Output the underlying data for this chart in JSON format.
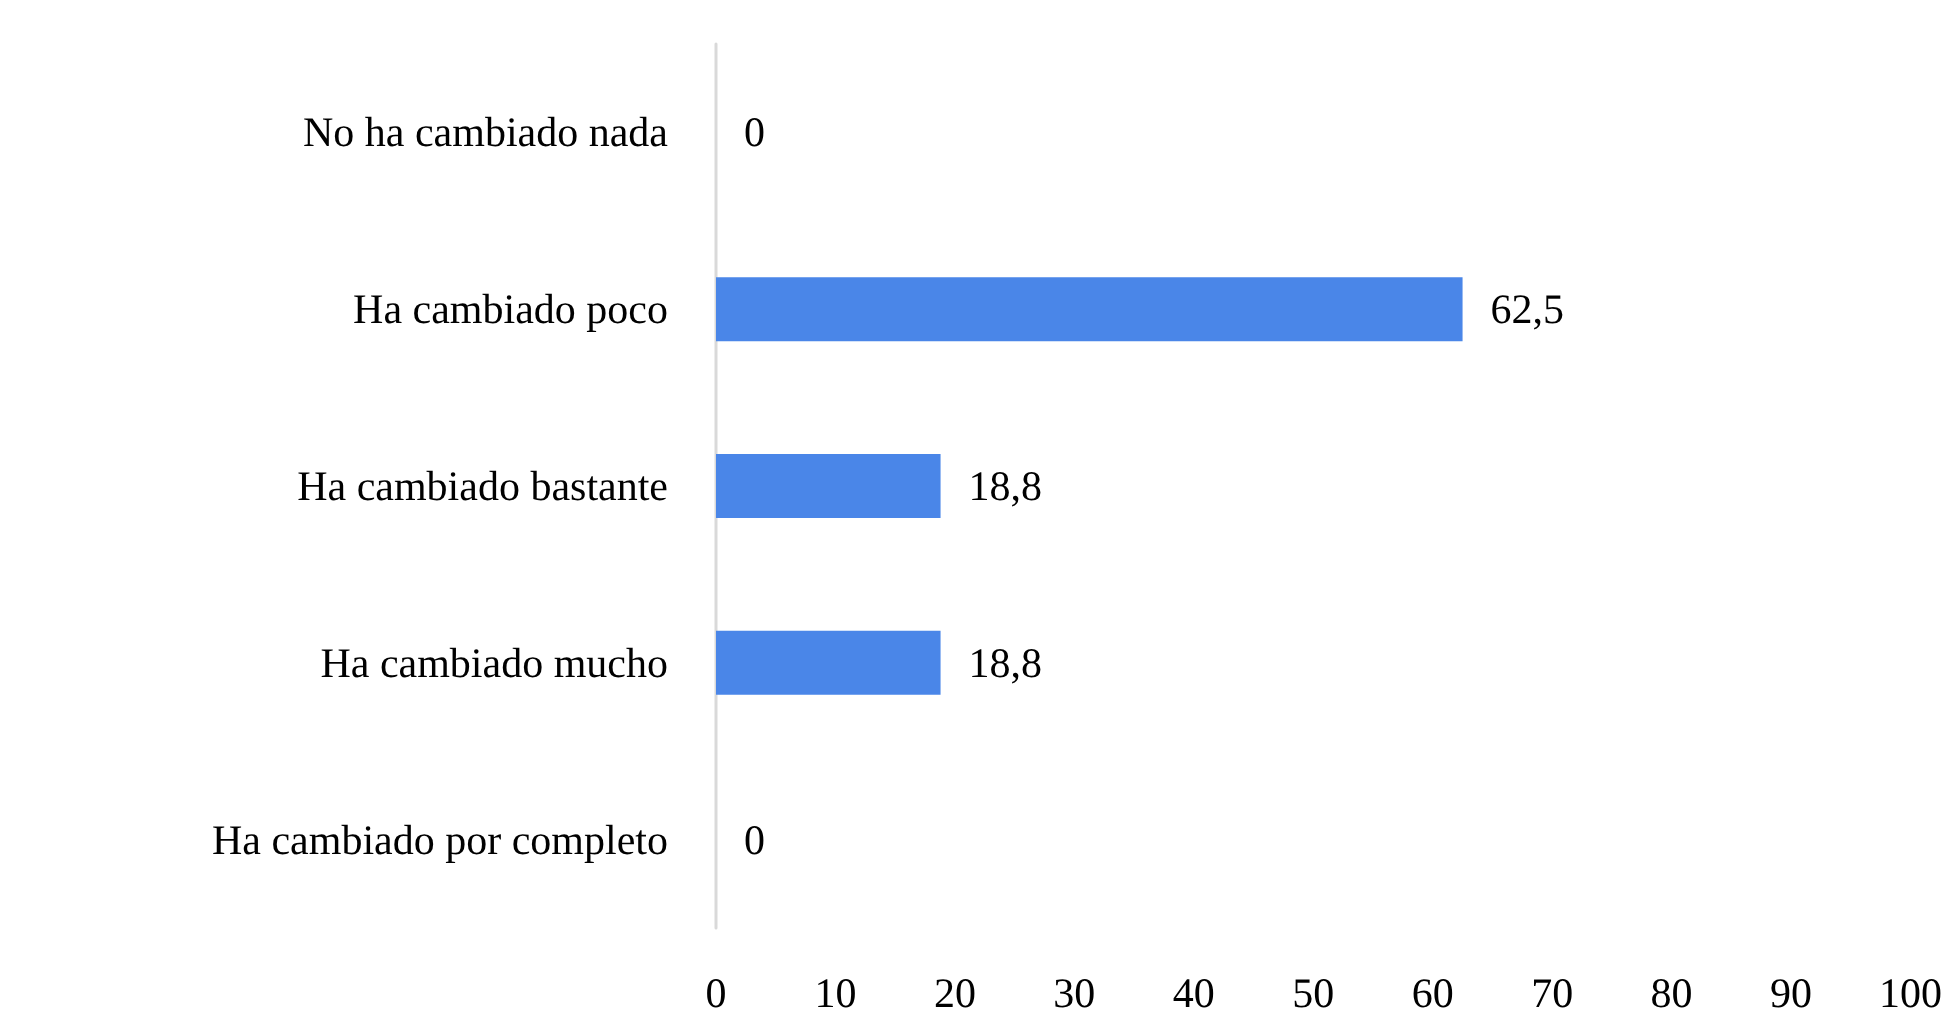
{
  "chart_data": {
    "type": "bar",
    "orientation": "horizontal",
    "categories": [
      "No ha cambiado nada",
      "Ha cambiado poco",
      "Ha cambiado bastante",
      "Ha cambiado mucho",
      "Ha cambiado por completo"
    ],
    "values": [
      0,
      62.5,
      18.8,
      18.8,
      0
    ],
    "value_labels": [
      "0",
      "62,5",
      "18,8",
      "18,8",
      "0"
    ],
    "color": "#4a86e8",
    "xlim": [
      0,
      100
    ],
    "xticks": [
      0,
      10,
      20,
      30,
      40,
      50,
      60,
      70,
      80,
      90,
      100
    ]
  }
}
